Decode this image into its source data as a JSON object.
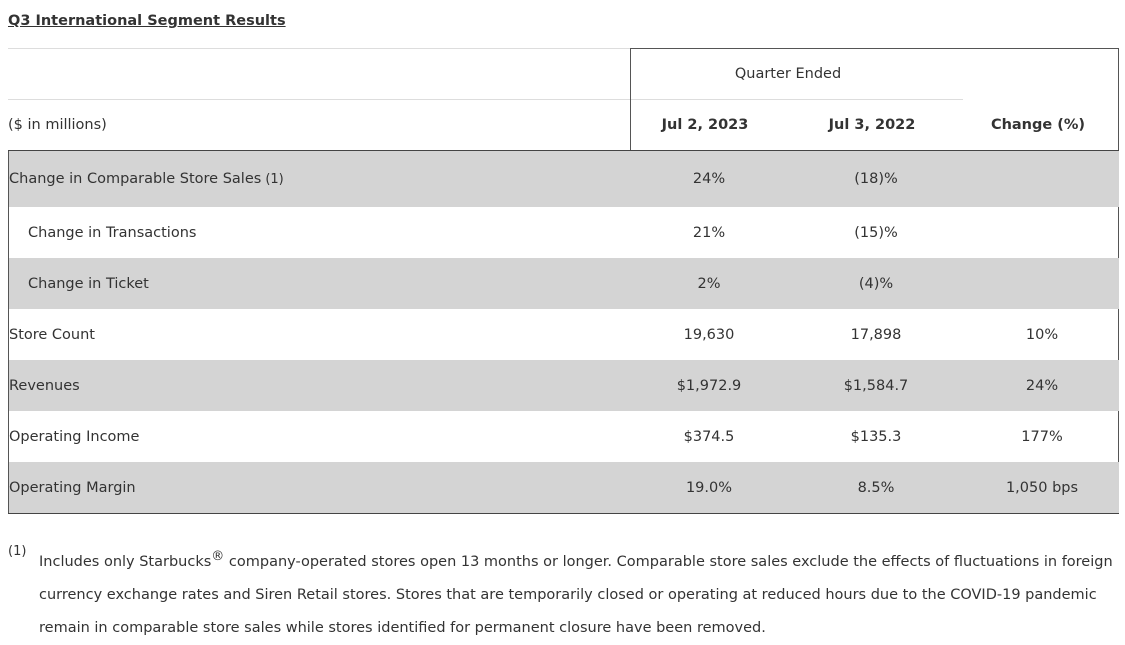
{
  "title": "Q3 International Segment Results",
  "table": {
    "group_header": "Quarter Ended",
    "columns": [
      "($ in millions)",
      "Jul 2, 2023",
      "Jul 3, 2022",
      "Change (%)"
    ],
    "rows": [
      {
        "label": "Change in Comparable Store Sales",
        "note": "(1)",
        "cells": [
          "24%",
          "(18)%"
        ]
      },
      {
        "label": "Change in Transactions",
        "cells": [
          "21%",
          "(15)%"
        ]
      },
      {
        "label": "Change in Ticket",
        "cells": [
          "2%",
          "(4)%"
        ]
      },
      {
        "label": "Store Count",
        "cells": [
          "19,630",
          "17,898",
          "10%"
        ]
      },
      {
        "label": "Revenues",
        "cells": [
          "$1,972.9",
          "$1,584.7",
          "24%"
        ]
      },
      {
        "label": "Operating Income",
        "cells": [
          "$374.5",
          "$135.3",
          "177%"
        ]
      },
      {
        "label": "Operating Margin",
        "cells": [
          "19.0%",
          "8.5%",
          "1,050 bps"
        ]
      }
    ]
  },
  "footnote": {
    "marker": "(1)",
    "text_before": "Includes only Starbucks",
    "symbol": "®",
    "text_after": "company-operated stores open 13 months or longer. Comparable store sales exclude the effects of fluctuations in foreign currency exchange rates and Siren Retail stores. Stores that are temporarily closed or operating at reduced hours due to the COVID-19 pandemic remain in comparable store sales while stores identified for permanent closure have been removed."
  }
}
